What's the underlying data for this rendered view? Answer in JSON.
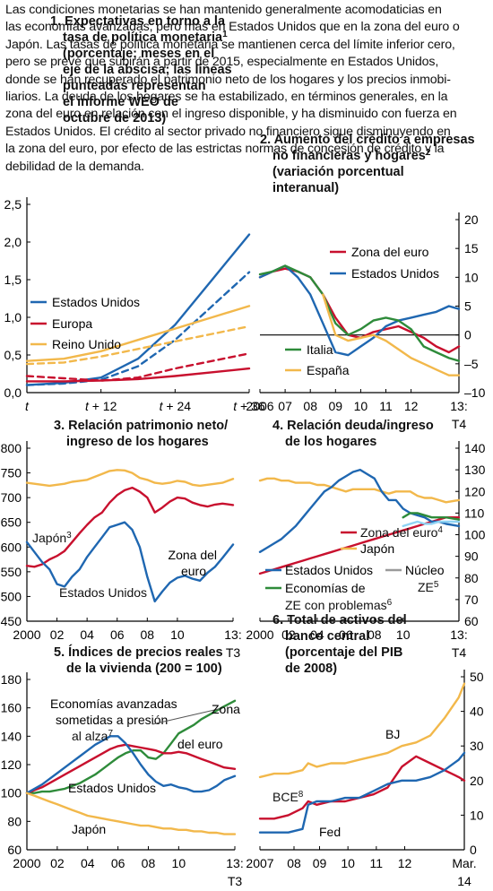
{
  "intro_lines": [
    "Las condiciones monetarias se han mantenido generalmente acomodaticias en",
    "las economías avanzadas, pero más en Estados Unidos que en la zona del euro o",
    "Japón. Las tasas de política monetaria se mantienen cerca del límite inferior cero,",
    "pero se prevé que subirán a partir de 2015, especialmente en Estados Unidos,",
    "donde se han recuperado el patrimonio neto de los hogares y los precios inmobi-",
    "liarios. La deuda de los hogares se ha estabilizado, en términos generales, en la",
    "zona del euro en relación con el ingreso disponible, y ha disminuido con fuerza en",
    "Estados Unidos. El crédito al sector privado no financiero sigue disminuyendo en",
    "la zona del euro, por efecto de las estrictas normas de concesión de crédito y la",
    "debilidad de la demanda."
  ],
  "colors": {
    "usa": "#1f67b1",
    "europe": "#c8102e",
    "uk": "#f2b84b",
    "japan": "#f2b84b",
    "italy": "#2e8b3a",
    "spain": "#f2b84b",
    "nucleo": "#8fd3f4"
  },
  "chart_data": [
    {
      "type": "line",
      "title_lines": [
        "1. Expectativas en torno a la",
        "tasa de política monetaria",
        "(porcentaje; meses en el",
        "eje de la abscisa; las líneas",
        "punteadas representan",
        "el informe WEO de",
        "octubre de 2013)"
      ],
      "title_sup": "1",
      "x_ticks": [
        "t",
        "t + 12",
        "t + 24",
        "t + 36"
      ],
      "y_ticks": [
        "0,0",
        "0,5",
        "1,0",
        "1,5",
        "2,0",
        "2,5"
      ],
      "ylim": [
        0,
        2.5
      ],
      "x": [
        0,
        6,
        12,
        18,
        24,
        30,
        36
      ],
      "series": [
        {
          "name": "Estados Unidos",
          "color": "usa",
          "dash": false,
          "values": [
            0.1,
            0.13,
            0.2,
            0.45,
            0.9,
            1.5,
            2.1
          ]
        },
        {
          "name": "",
          "color": "usa",
          "dash": true,
          "values": [
            0.1,
            0.12,
            0.17,
            0.35,
            0.7,
            1.15,
            1.6
          ]
        },
        {
          "name": "Europa",
          "color": "europe",
          "dash": false,
          "values": [
            0.15,
            0.15,
            0.16,
            0.18,
            0.22,
            0.27,
            0.32
          ]
        },
        {
          "name": "",
          "color": "europe",
          "dash": true,
          "values": [
            0.22,
            0.19,
            0.16,
            0.2,
            0.32,
            0.42,
            0.52
          ]
        },
        {
          "name": "Reino Unido",
          "color": "uk",
          "dash": false,
          "values": [
            0.42,
            0.45,
            0.55,
            0.7,
            0.85,
            1.0,
            1.15
          ]
        },
        {
          "name": "",
          "color": "uk",
          "dash": true,
          "values": [
            0.38,
            0.4,
            0.48,
            0.58,
            0.68,
            0.78,
            0.88
          ]
        }
      ]
    },
    {
      "type": "line",
      "title_lines": [
        "2. Aumento del crédito a empresas",
        "no financieras y hogares",
        "(variación porcentual",
        "interanual)"
      ],
      "title_sup": "2",
      "x_ticks": [
        "2006",
        "07",
        "08",
        "09",
        "10",
        "11",
        "12",
        "13:"
      ],
      "x_end_label": "T4",
      "y_ticks": [
        "–10",
        "–5",
        "0",
        "5",
        "10",
        "15",
        "20"
      ],
      "ylim": [
        -10,
        20
      ],
      "x": [
        2006,
        2006.5,
        2007,
        2007.5,
        2008,
        2008.5,
        2009,
        2009.5,
        2010,
        2010.5,
        2011,
        2011.5,
        2012,
        2012.5,
        2013,
        2013.5,
        2013.9
      ],
      "series": [
        {
          "name": "Zona del euro",
          "color": "europe",
          "values": [
            10,
            11,
            11.5,
            11,
            10,
            7,
            3,
            0,
            -0.5,
            0.5,
            1,
            1.5,
            0.5,
            -0.5,
            -2,
            -3,
            -2
          ]
        },
        {
          "name": "Estados Unidos",
          "color": "usa",
          "values": [
            10,
            11,
            12,
            10,
            7,
            2,
            -3,
            -3.5,
            -2,
            -0.5,
            1.5,
            2.5,
            3,
            3.5,
            4,
            5,
            4.5
          ]
        },
        {
          "name": "Italia",
          "color": "italy",
          "values": [
            10.5,
            11,
            12,
            11,
            10,
            7,
            2,
            0,
            1,
            2.5,
            3,
            2.5,
            1,
            -2,
            -3,
            -4,
            -4.5
          ]
        },
        {
          "name": "España",
          "color": "spain",
          "values": [
            null,
            null,
            null,
            null,
            null,
            7,
            0,
            -1,
            -0.5,
            0,
            -1,
            -2.5,
            -4,
            -5,
            -6,
            -7,
            -7
          ]
        }
      ]
    },
    {
      "type": "line",
      "title_lines": [
        "3. Relación patrimonio neto/",
        "ingreso de los hogares"
      ],
      "x_ticks": [
        "2000",
        "02",
        "04",
        "06",
        "08",
        "10",
        "13:"
      ],
      "x_end_label": "T3",
      "y_ticks": [
        "450",
        "500",
        "550",
        "600",
        "650",
        "700",
        "750",
        "800"
      ],
      "ylim": [
        450,
        800
      ],
      "x": [
        2000,
        2000.5,
        2001,
        2001.5,
        2002,
        2002.5,
        2003,
        2003.5,
        2004,
        2004.5,
        2005,
        2005.5,
        2006,
        2006.5,
        2007,
        2007.5,
        2008,
        2008.5,
        2009,
        2009.5,
        2010,
        2010.5,
        2011,
        2011.5,
        2012,
        2012.5,
        2013,
        2013.7
      ],
      "series": [
        {
          "name": "Japón",
          "color": "japan",
          "values": [
            730,
            728,
            726,
            724,
            726,
            728,
            732,
            734,
            736,
            742,
            748,
            754,
            756,
            755,
            750,
            740,
            736,
            730,
            728,
            730,
            734,
            732,
            726,
            724,
            726,
            728,
            730,
            738
          ]
        },
        {
          "name": "Zona del euro",
          "color": "europe",
          "values": [
            562,
            560,
            565,
            575,
            582,
            592,
            610,
            628,
            645,
            660,
            670,
            690,
            705,
            715,
            720,
            712,
            700,
            670,
            680,
            692,
            700,
            698,
            690,
            685,
            682,
            686,
            688,
            685
          ]
        },
        {
          "name": "Estados Unidos",
          "color": "usa",
          "values": [
            610,
            590,
            570,
            555,
            525,
            520,
            540,
            555,
            580,
            600,
            620,
            640,
            645,
            650,
            635,
            600,
            540,
            490,
            510,
            528,
            538,
            542,
            536,
            532,
            548,
            560,
            578,
            605
          ]
        }
      ]
    },
    {
      "type": "line",
      "title_lines": [
        "4. Relación deuda/ingreso",
        "de los hogares"
      ],
      "x_ticks": [
        "2000",
        "02",
        "04",
        "06",
        "08",
        "10",
        "13:"
      ],
      "x_end_label": "T4",
      "y_ticks": [
        "60",
        "70",
        "80",
        "90",
        "100",
        "110",
        "120",
        "130",
        "140"
      ],
      "ylim": [
        60,
        140
      ],
      "x": [
        2000,
        2000.5,
        2001,
        2001.5,
        2002,
        2002.5,
        2003,
        2003.5,
        2004,
        2004.5,
        2005,
        2005.5,
        2006,
        2006.5,
        2007,
        2007.5,
        2008,
        2008.5,
        2009,
        2009.5,
        2010,
        2010.5,
        2011,
        2011.5,
        2012,
        2012.5,
        2013,
        2013.9
      ],
      "series": [
        {
          "name": "Zona del euro",
          "sup": "4",
          "color": "europe",
          "values": [
            82,
            83,
            84,
            85,
            86,
            87,
            88,
            89,
            90,
            91,
            92,
            93,
            94,
            95,
            96,
            97,
            98,
            99,
            100,
            101,
            102,
            103,
            104,
            105,
            106,
            107,
            108,
            108
          ]
        },
        {
          "name": "Japón",
          "color": "japan",
          "values": [
            125,
            126,
            126,
            125,
            125,
            124,
            124,
            124,
            123,
            123,
            122,
            121,
            120,
            121,
            121,
            121,
            121,
            120,
            119,
            120,
            120,
            120,
            118,
            117,
            117,
            116,
            115,
            116
          ]
        },
        {
          "name": "Estados Unidos",
          "color": "usa",
          "values": [
            92,
            94,
            96,
            98,
            101,
            104,
            108,
            112,
            116,
            120,
            122,
            125,
            127,
            129,
            130,
            128,
            126,
            120,
            116,
            116,
            112,
            110,
            109,
            108,
            106,
            106,
            105,
            104
          ]
        },
        {
          "name": "Núcleo ZE",
          "sup": "5",
          "color": "nucleo",
          "values": [
            null,
            null,
            null,
            null,
            null,
            null,
            null,
            null,
            null,
            null,
            null,
            null,
            null,
            null,
            null,
            null,
            null,
            null,
            null,
            null,
            104,
            105,
            106,
            105,
            105,
            106,
            106,
            106
          ]
        },
        {
          "name": "Economías de ZE con problemas",
          "sup": "6",
          "color": "italy",
          "values": [
            null,
            null,
            null,
            null,
            null,
            null,
            null,
            null,
            null,
            null,
            null,
            null,
            null,
            null,
            null,
            null,
            null,
            null,
            null,
            null,
            108,
            110,
            110,
            109,
            108,
            108,
            108,
            107
          ]
        }
      ]
    },
    {
      "type": "line",
      "title_lines": [
        "5. Índices de precios reales",
        "de la vivienda (200 = 100)"
      ],
      "x_ticks": [
        "2000",
        "02",
        "04",
        "06",
        "08",
        "10",
        "13:"
      ],
      "x_end_label": "T3",
      "y_ticks": [
        "60",
        "80",
        "100",
        "120",
        "140",
        "160",
        "180"
      ],
      "ylim": [
        60,
        180
      ],
      "x": [
        2000,
        2000.5,
        2001,
        2001.5,
        2002,
        2002.5,
        2003,
        2003.5,
        2004,
        2004.5,
        2005,
        2005.5,
        2006,
        2006.5,
        2007,
        2007.5,
        2008,
        2008.5,
        2009,
        2009.5,
        2010,
        2010.5,
        2011,
        2011.5,
        2012,
        2012.5,
        2013,
        2013.7
      ],
      "series": [
        {
          "name": "Economías avanzadas sometidas a presión al alza",
          "sup": "7",
          "color": "italy",
          "values": [
            100,
            100,
            101,
            101,
            102,
            103,
            105,
            107,
            110,
            113,
            117,
            121,
            125,
            128,
            130,
            130,
            125,
            124,
            128,
            135,
            142,
            145,
            148,
            152,
            155,
            158,
            161,
            165
          ]
        },
        {
          "name": "Zona del euro",
          "color": "europe",
          "values": [
            100,
            102,
            104,
            107,
            110,
            113,
            116,
            119,
            122,
            125,
            128,
            131,
            133,
            134,
            133,
            132,
            131,
            130,
            128,
            128,
            129,
            128,
            126,
            124,
            122,
            120,
            118,
            117
          ]
        },
        {
          "name": "Estados Unidos",
          "color": "usa",
          "values": [
            100,
            103,
            106,
            110,
            114,
            118,
            122,
            126,
            130,
            134,
            137,
            140,
            140,
            135,
            128,
            120,
            113,
            108,
            105,
            106,
            104,
            103,
            101,
            101,
            102,
            105,
            109,
            112
          ]
        },
        {
          "name": "Japón",
          "color": "japan",
          "values": [
            100,
            98,
            96,
            94,
            92,
            90,
            88,
            86,
            84,
            83,
            82,
            81,
            80,
            79,
            78,
            77,
            77,
            76,
            75,
            75,
            74,
            74,
            73,
            73,
            72,
            72,
            71,
            71
          ]
        }
      ]
    },
    {
      "type": "line",
      "title_lines": [
        "6. Total de activos del",
        "banco central",
        "(porcentaje del PIB",
        "de 2008)"
      ],
      "x_ticks": [
        "2007",
        "08",
        "09",
        "10",
        "11",
        "12",
        "Mar."
      ],
      "x_end_label": "14",
      "y_ticks": [
        "0",
        "10",
        "20",
        "30",
        "40",
        "50"
      ],
      "ylim": [
        0,
        50
      ],
      "x": [
        2007,
        2007.5,
        2008,
        2008.5,
        2008.7,
        2009,
        2009.5,
        2010,
        2010.5,
        2011,
        2011.5,
        2012,
        2012.5,
        2013,
        2013.5,
        2014,
        2014.2
      ],
      "series": [
        {
          "name": "BJ",
          "color": "japan",
          "values": [
            21,
            22,
            22,
            23,
            25,
            24,
            25,
            25,
            26,
            27,
            28,
            30,
            31,
            33,
            38,
            44,
            48
          ]
        },
        {
          "name": "BCE",
          "sup": "8",
          "color": "europe",
          "values": [
            9,
            9,
            10,
            12,
            14,
            13,
            14,
            14,
            15,
            16,
            18,
            24,
            27,
            25,
            23,
            21,
            20
          ]
        },
        {
          "name": "Fed",
          "color": "usa",
          "values": [
            5,
            5,
            5,
            6,
            13,
            14,
            14,
            15,
            15,
            17,
            19,
            20,
            20,
            21,
            23,
            26,
            28
          ]
        }
      ]
    }
  ]
}
